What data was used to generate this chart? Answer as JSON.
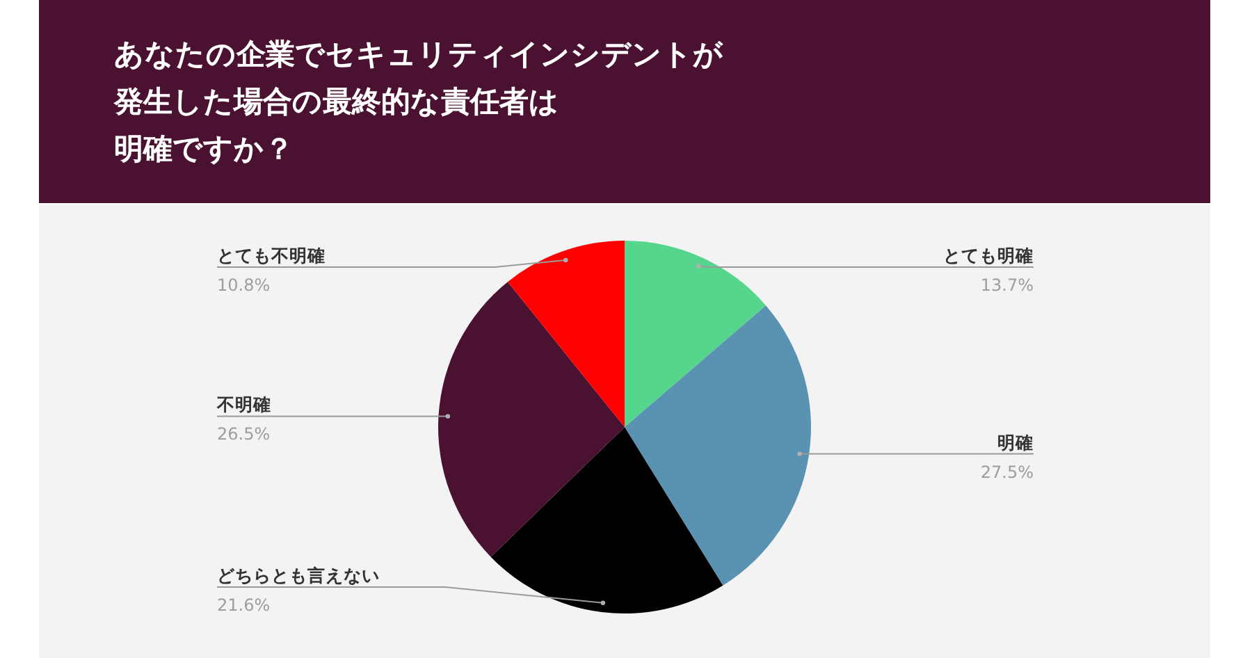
{
  "chart_data": {
    "type": "pie",
    "title": "あなたの企業でセキュリティインシデントが発生した場合の最終的な責任者は明確ですか？",
    "categories": [
      "とても明確",
      "明確",
      "どちらとも言えない",
      "不明確",
      "とても不明確"
    ],
    "values": [
      13.7,
      27.5,
      21.6,
      26.5,
      10.8
    ],
    "value_labels": [
      "13.7%",
      "27.5%",
      "21.6%",
      "26.5%",
      "10.8%"
    ],
    "colors": [
      "#55d68c",
      "#5a93b1",
      "#000000",
      "#4a1230",
      "#ff0000"
    ]
  }
}
